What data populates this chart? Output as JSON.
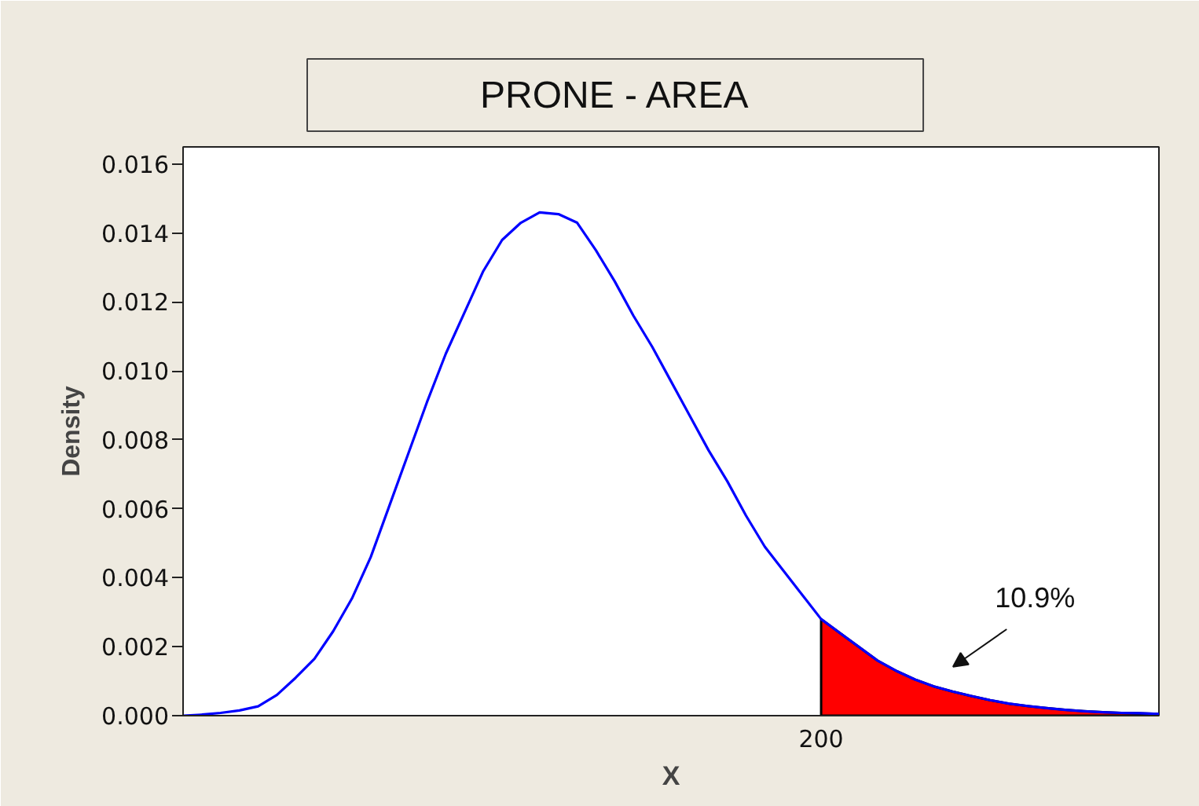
{
  "chart_data": {
    "type": "line",
    "title": "PRONE - AREA",
    "xlabel": "X",
    "ylabel": "Density",
    "categories": [
      null,
      null,
      null,
      null,
      null,
      null,
      null,
      null,
      null,
      null,
      null,
      null,
      null,
      null,
      null,
      null,
      null,
      null,
      null,
      null,
      null,
      null,
      null,
      null,
      null,
      null,
      null,
      null,
      null,
      null,
      null,
      null,
      null,
      null,
      "200",
      null,
      null,
      null,
      null,
      null,
      null,
      null,
      null,
      null,
      null,
      null,
      null,
      null,
      null,
      null,
      null,
      null,
      null
    ],
    "series": [
      {
        "type": "area",
        "color": "#ff0000",
        "values": [
          null,
          null,
          null,
          null,
          null,
          null,
          null,
          null,
          null,
          null,
          null,
          null,
          null,
          null,
          null,
          null,
          null,
          null,
          null,
          null,
          null,
          null,
          null,
          null,
          null,
          null,
          null,
          null,
          null,
          null,
          null,
          null,
          null,
          null,
          0.0028,
          0.0024,
          0.002,
          0.0016,
          0.0013,
          0.00105,
          0.00085,
          0.0007,
          0.00057,
          0.00045,
          0.00035,
          0.00028,
          0.00022,
          0.00017,
          0.00013,
          0.0001,
          8e-05,
          7e-05,
          5e-05
        ]
      },
      {
        "color": "#0000ff",
        "values": [
          0.0,
          3e-05,
          8e-05,
          0.00015,
          0.00027,
          0.0006,
          0.0011,
          0.00165,
          0.00245,
          0.0034,
          0.0046,
          0.0061,
          0.0076,
          0.0091,
          0.0105,
          0.0117,
          0.0129,
          0.0138,
          0.0143,
          0.0146,
          0.01455,
          0.0143,
          0.0135,
          0.0126,
          0.0116,
          0.0107,
          0.0097,
          0.0087,
          0.0077,
          0.0068,
          0.0058,
          0.0049,
          0.0042,
          0.0035,
          0.0028,
          0.0024,
          0.002,
          0.0016,
          0.0013,
          0.00105,
          0.00085,
          0.0007,
          0.00057,
          0.00045,
          0.00035,
          0.00028,
          0.00022,
          0.00017,
          0.00013,
          0.0001,
          8e-05,
          7e-05,
          5e-05
        ]
      }
    ],
    "ylim": [
      0,
      0.0165
    ],
    "yticks": [
      {
        "value": 0,
        "label": "0.000"
      },
      0.002,
      0.004,
      0.006,
      0.008,
      {
        "value": 0.01,
        "label": "0.010"
      },
      0.012,
      0.014,
      0.016
    ],
    "annotations": [
      "10.9%"
    ]
  }
}
